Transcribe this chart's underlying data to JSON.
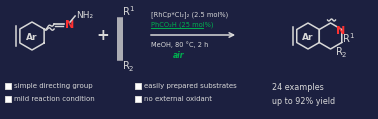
{
  "bg_color": "#1c2040",
  "text_color": "#d8d8d8",
  "green_color": "#00b050",
  "red_color": "#ff3030",
  "reaction_line1": "[RhCp*Cl₂]₂ (2.5 mol%)",
  "reaction_line2": "PhCO₂H (25 mol%)",
  "reaction_line3": "MeOH, 80 °C, 2 h",
  "reaction_line4": "air",
  "bullet_items_left": [
    "simple directing group",
    "mild reaction condition"
  ],
  "bullet_items_right": [
    "easily prepared substrates",
    "no external oxidant"
  ],
  "result_text": "24 examples\nup to 92% yield"
}
